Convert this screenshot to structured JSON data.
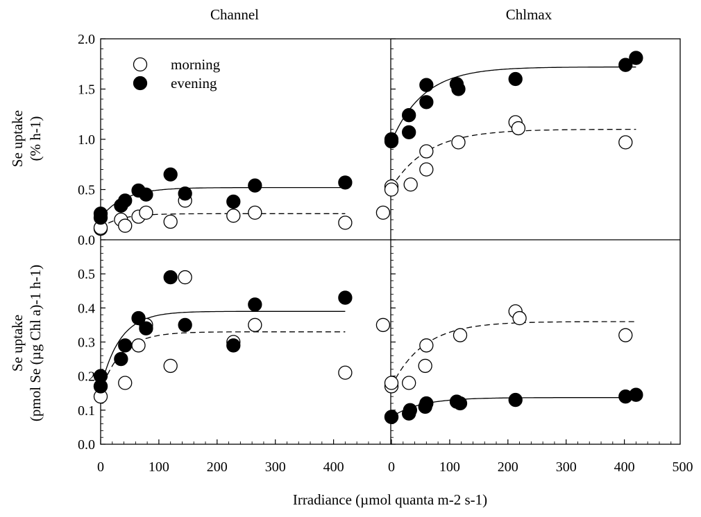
{
  "figure": {
    "column_titles": [
      "Channel",
      "Chlmax"
    ],
    "xlabel": "Irradiance (µmol quanta m-2 s-1)",
    "legend": {
      "items": [
        {
          "label": "morning",
          "marker": "open-circle"
        },
        {
          "label": "evening",
          "marker": "filled-circle"
        }
      ],
      "position": "top-left of upper-left panel"
    }
  },
  "chart_data": [
    {
      "panel": "Channel, % uptake",
      "type": "scatter",
      "ylabel": [
        "Se uptake",
        "(% h-1)"
      ],
      "xlim": [
        0,
        500
      ],
      "ylim": [
        0,
        2.0
      ],
      "xticks": [
        0,
        100,
        200,
        300,
        400
      ],
      "yticks": [
        0.0,
        0.5,
        1.0,
        1.5,
        2.0
      ],
      "series": [
        {
          "name": "morning",
          "marker": "open",
          "fit": "dashed",
          "x": [
            0,
            0,
            35,
            42,
            65,
            78,
            120,
            145,
            228,
            265,
            420,
            485
          ],
          "y": [
            0.11,
            0.12,
            0.2,
            0.14,
            0.23,
            0.27,
            0.18,
            0.39,
            0.24,
            0.27,
            0.17,
            0.27
          ],
          "fit_curve": {
            "p0": 0.12,
            "pmax": 0.26,
            "k": 0.03
          }
        },
        {
          "name": "evening",
          "marker": "filled",
          "fit": "solid",
          "x": [
            0,
            0,
            35,
            42,
            65,
            78,
            120,
            145,
            228,
            265,
            420
          ],
          "y": [
            0.26,
            0.22,
            0.34,
            0.39,
            0.49,
            0.45,
            0.65,
            0.46,
            0.38,
            0.54,
            0.57
          ],
          "fit_curve": {
            "p0": 0.22,
            "pmax": 0.52,
            "k": 0.025
          }
        }
      ]
    },
    {
      "panel": "Chlmax, % uptake",
      "type": "scatter",
      "xlim": [
        0,
        500
      ],
      "ylim": [
        0,
        2.0
      ],
      "xticks": [
        0,
        100,
        200,
        300,
        400,
        500
      ],
      "yticks": [
        0.0,
        0.5,
        1.0,
        1.5,
        2.0
      ],
      "series": [
        {
          "name": "morning",
          "marker": "open",
          "fit": "dashed",
          "x": [
            0,
            0,
            33,
            60,
            60,
            115,
            213,
            218,
            402
          ],
          "y": [
            0.53,
            0.5,
            0.55,
            0.7,
            0.88,
            0.97,
            1.17,
            1.11,
            0.97
          ],
          "fit_curve": {
            "p0": 0.52,
            "pmax": 1.1,
            "k": 0.016
          }
        },
        {
          "name": "evening",
          "marker": "filled",
          "fit": "solid",
          "x": [
            0,
            0,
            30,
            30,
            60,
            60,
            112,
            115,
            213,
            402,
            420
          ],
          "y": [
            1.0,
            0.98,
            1.24,
            1.07,
            1.54,
            1.37,
            1.55,
            1.5,
            1.6,
            1.74,
            1.81
          ],
          "fit_curve": {
            "p0": 0.98,
            "pmax": 1.72,
            "k": 0.018
          }
        }
      ]
    },
    {
      "panel": "Channel, per chlorophyll",
      "type": "scatter",
      "ylabel": [
        "Se uptake",
        "(pmol Se (µg Chl a)-1 h-1)"
      ],
      "xlim": [
        0,
        500
      ],
      "ylim": [
        0,
        0.6
      ],
      "xticks": [
        0,
        100,
        200,
        300,
        400
      ],
      "yticks": [
        0.0,
        0.1,
        0.2,
        0.3,
        0.4,
        0.5
      ],
      "series": [
        {
          "name": "morning",
          "marker": "open",
          "fit": "dashed",
          "x": [
            0,
            0,
            42,
            65,
            78,
            120,
            145,
            228,
            265,
            420,
            485
          ],
          "y": [
            0.14,
            0.17,
            0.18,
            0.29,
            0.35,
            0.23,
            0.49,
            0.3,
            0.35,
            0.21,
            0.35
          ],
          "fit_curve": {
            "p0": 0.155,
            "pmax": 0.33,
            "k": 0.028
          }
        },
        {
          "name": "evening",
          "marker": "filled",
          "fit": "solid",
          "x": [
            0,
            0,
            35,
            42,
            65,
            78,
            120,
            145,
            228,
            265,
            420
          ],
          "y": [
            0.2,
            0.17,
            0.25,
            0.29,
            0.37,
            0.34,
            0.49,
            0.35,
            0.29,
            0.41,
            0.43
          ],
          "fit_curve": {
            "p0": 0.165,
            "pmax": 0.39,
            "k": 0.03
          }
        }
      ]
    },
    {
      "panel": "Chlmax, per chlorophyll",
      "type": "scatter",
      "xlim": [
        0,
        500
      ],
      "ylim": [
        0,
        0.6
      ],
      "xticks": [
        0,
        100,
        200,
        300,
        400,
        500
      ],
      "yticks": [
        0.0,
        0.1,
        0.2,
        0.3,
        0.4,
        0.5
      ],
      "series": [
        {
          "name": "morning",
          "marker": "open",
          "fit": "dashed",
          "x": [
            0,
            0,
            30,
            58,
            60,
            118,
            213,
            220,
            402
          ],
          "y": [
            0.17,
            0.18,
            0.18,
            0.23,
            0.29,
            0.32,
            0.39,
            0.37,
            0.32
          ],
          "fit_curve": {
            "p0": 0.17,
            "pmax": 0.36,
            "k": 0.018
          }
        },
        {
          "name": "evening",
          "marker": "filled",
          "fit": "solid",
          "x": [
            0,
            0,
            30,
            32,
            58,
            60,
            112,
            118,
            213,
            402,
            420
          ],
          "y": [
            0.08,
            0.08,
            0.09,
            0.1,
            0.11,
            0.12,
            0.125,
            0.12,
            0.13,
            0.14,
            0.145
          ],
          "fit_curve": {
            "p0": 0.08,
            "pmax": 0.137,
            "k": 0.02
          }
        }
      ]
    }
  ]
}
